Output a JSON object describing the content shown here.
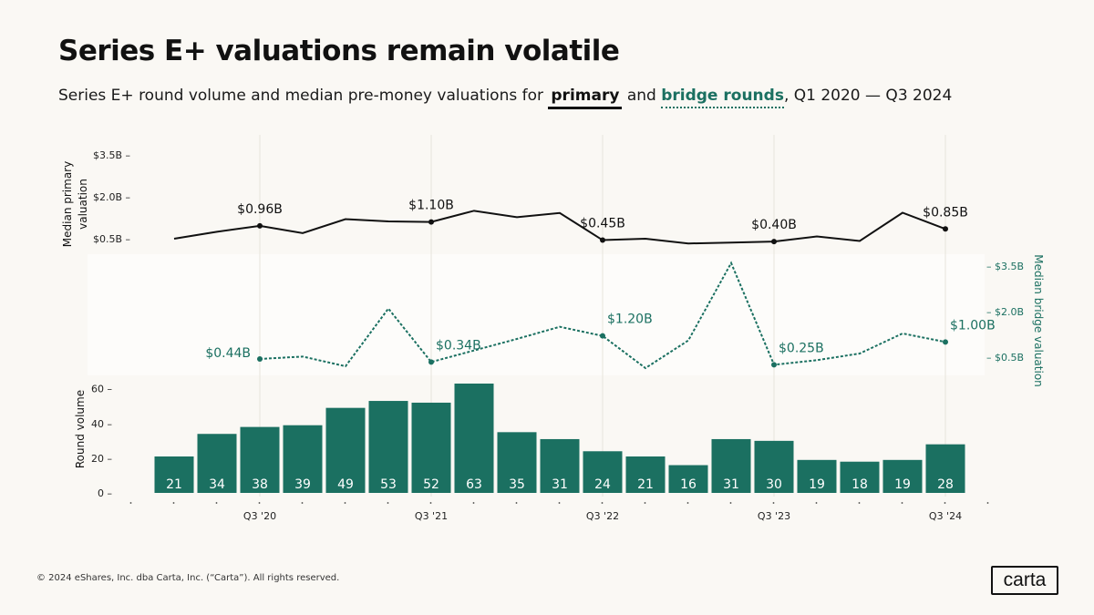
{
  "title": "Series E+ valuations remain volatile",
  "subtitle": {
    "prefix": "Series E+ round volume and median pre-money valuations for ",
    "primary": "primary",
    "middle": " and ",
    "bridge": "bridge rounds",
    "suffix": ", Q1 2020 — Q3 2024"
  },
  "footer": "© 2024 eShares, Inc. dba Carta, Inc. (“Carta”). All rights reserved.",
  "logo": "carta",
  "colors": {
    "primary": "#111111",
    "bridge": "#1b7061",
    "bar": "#1b7061",
    "bar_label": "#ffffff"
  },
  "chart_data": [
    {
      "type": "line",
      "id": "primary",
      "ylabel": "Median primary valuation",
      "yticks": [
        {
          "value": 0.5,
          "label": "$0.5B"
        },
        {
          "value": 2.0,
          "label": "$2.0B"
        },
        {
          "value": 3.5,
          "label": "$3.5B"
        }
      ],
      "ylim": [
        0.5,
        3.5
      ],
      "x": [
        "Q1 2020",
        "Q2 2020",
        "Q3 2020",
        "Q4 2020",
        "Q1 2021",
        "Q2 2021",
        "Q3 2021",
        "Q4 2021",
        "Q1 2022",
        "Q2 2022",
        "Q3 2022",
        "Q4 2022",
        "Q1 2023",
        "Q2 2023",
        "Q3 2023",
        "Q4 2023",
        "Q1 2024",
        "Q2 2024",
        "Q3 2024"
      ],
      "values": [
        0.5,
        0.75,
        0.96,
        0.7,
        1.2,
        1.12,
        1.1,
        1.5,
        1.27,
        1.42,
        0.45,
        0.5,
        0.33,
        0.36,
        0.4,
        0.58,
        0.42,
        1.43,
        0.85
      ],
      "annotations": [
        {
          "index": 2,
          "label": "$0.96B"
        },
        {
          "index": 6,
          "label": "$1.10B"
        },
        {
          "index": 10,
          "label": "$0.45B"
        },
        {
          "index": 14,
          "label": "$0.40B"
        },
        {
          "index": 18,
          "label": "$0.85B"
        }
      ]
    },
    {
      "type": "line",
      "id": "bridge",
      "ylabel": "Median bridge valuation",
      "yticks": [
        {
          "value": 0.5,
          "label": "$0.5B"
        },
        {
          "value": 2.0,
          "label": "$2.0B"
        },
        {
          "value": 3.5,
          "label": "$3.5B"
        }
      ],
      "ylim": [
        0.5,
        3.5
      ],
      "x": [
        "Q1 2020",
        "Q2 2020",
        "Q3 2020",
        "Q4 2020",
        "Q1 2021",
        "Q2 2021",
        "Q3 2021",
        "Q4 2021",
        "Q1 2022",
        "Q2 2022",
        "Q3 2022",
        "Q4 2022",
        "Q1 2023",
        "Q2 2023",
        "Q3 2023",
        "Q4 2023",
        "Q1 2024",
        "Q2 2024",
        "Q3 2024"
      ],
      "values": [
        null,
        null,
        0.44,
        0.52,
        0.2,
        2.1,
        0.34,
        0.72,
        1.1,
        1.5,
        1.2,
        0.14,
        1.05,
        3.6,
        0.25,
        0.4,
        0.62,
        1.28,
        1.0
      ],
      "annotations": [
        {
          "index": 2,
          "label": "$0.44B"
        },
        {
          "index": 6,
          "label": "$0.34B"
        },
        {
          "index": 10,
          "label": "$1.20B"
        },
        {
          "index": 14,
          "label": "$0.25B"
        },
        {
          "index": 18,
          "label": "$1.00B"
        }
      ]
    },
    {
      "type": "bar",
      "id": "volume",
      "ylabel": "Round volume",
      "yticks": [
        {
          "value": 0,
          "label": "0"
        },
        {
          "value": 20,
          "label": "20"
        },
        {
          "value": 40,
          "label": "40"
        },
        {
          "value": 60,
          "label": "60"
        }
      ],
      "ylim": [
        0,
        63
      ],
      "categories": [
        "Q1 2020",
        "Q2 2020",
        "Q3 2020",
        "Q4 2020",
        "Q1 2021",
        "Q2 2021",
        "Q3 2021",
        "Q4 2021",
        "Q1 2022",
        "Q2 2022",
        "Q3 2022",
        "Q4 2022",
        "Q1 2023",
        "Q2 2023",
        "Q3 2023",
        "Q4 2023",
        "Q1 2024",
        "Q2 2024",
        "Q3 2024"
      ],
      "values": [
        21,
        34,
        38,
        39,
        49,
        53,
        52,
        63,
        35,
        31,
        24,
        21,
        16,
        31,
        30,
        19,
        18,
        19,
        28
      ],
      "xtick_labels": [
        {
          "index": 2,
          "label": "Q3 '20"
        },
        {
          "index": 6,
          "label": "Q3 '21"
        },
        {
          "index": 10,
          "label": "Q3 '22"
        },
        {
          "index": 14,
          "label": "Q3 '23"
        },
        {
          "index": 18,
          "label": "Q3 '24"
        }
      ]
    }
  ]
}
